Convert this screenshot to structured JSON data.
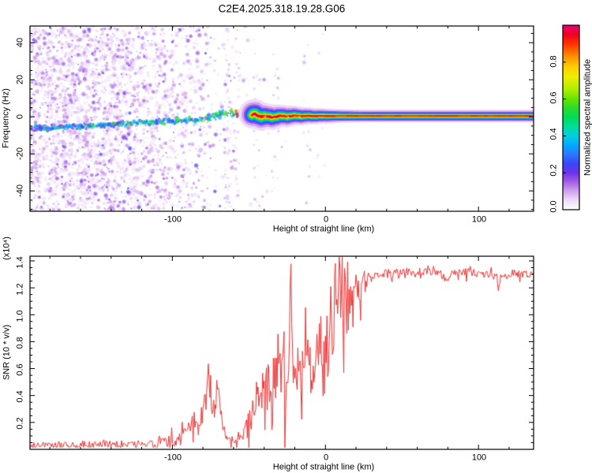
{
  "figure": {
    "title": "C2E4.2025.318.19.28.G06",
    "background": "#ffffff",
    "frame_color": "#000000"
  },
  "chart_data": [
    {
      "type": "heatmap",
      "name": "doppler-spectrogram",
      "xlabel": "Height of straight line (km)",
      "ylabel": "Frequency (Hz)",
      "xlim": [
        -193,
        136
      ],
      "ylim": [
        -51,
        49
      ],
      "xticks": {
        "values": [
          -100,
          0,
          100
        ],
        "minor_step": 20
      },
      "yticks": {
        "values": [
          40,
          20,
          0,
          -20,
          -40
        ],
        "minor_step": 5
      },
      "xtick_labels": [
        "-100",
        "0",
        "100"
      ],
      "ytick_labels": [
        "40",
        "20",
        "0",
        "-20",
        "-40"
      ],
      "colorbar": {
        "label": "Normalized spectral amplitude",
        "range": [
          0,
          1
        ],
        "tick_values": [
          0.0,
          0.2,
          0.4,
          0.6,
          0.8
        ],
        "tick_labels": [
          "0.0",
          "0.2",
          "0.4",
          "0.6",
          "0.8"
        ],
        "colormap_stops": [
          [
            0.0,
            "#ffffff"
          ],
          [
            0.05,
            "#efdcf8"
          ],
          [
            0.1,
            "#cfa4ef"
          ],
          [
            0.15,
            "#a55fe3"
          ],
          [
            0.2,
            "#6a33e8"
          ],
          [
            0.25,
            "#3a46fa"
          ],
          [
            0.3,
            "#2b79ff"
          ],
          [
            0.35,
            "#00a9ff"
          ],
          [
            0.4,
            "#00cfe0"
          ],
          [
            0.45,
            "#00dc9b"
          ],
          [
            0.5,
            "#00dc58"
          ],
          [
            0.55,
            "#2adc2a"
          ],
          [
            0.6,
            "#67e300"
          ],
          [
            0.65,
            "#abee00"
          ],
          [
            0.72,
            "#eeee00"
          ],
          [
            0.78,
            "#ffc900"
          ],
          [
            0.84,
            "#ff8400"
          ],
          [
            0.9,
            "#ff3000"
          ],
          [
            0.95,
            "#ee0022"
          ],
          [
            1.0,
            "#ee0077"
          ]
        ]
      },
      "signal_track": [
        [
          -193,
          -6.5,
          0.45,
          4.5
        ],
        [
          -185,
          -6.1,
          0.5,
          4.5
        ],
        [
          -178,
          -5.8,
          0.48,
          4.5
        ],
        [
          -170,
          -5.4,
          0.52,
          4.5
        ],
        [
          -162,
          -5.1,
          0.48,
          4.5
        ],
        [
          -155,
          -4.8,
          0.52,
          4.5
        ],
        [
          -148,
          -4.4,
          0.55,
          4.5
        ],
        [
          -140,
          -4.1,
          0.5,
          4.5
        ],
        [
          -132,
          -3.8,
          0.55,
          4.5
        ],
        [
          -125,
          -3.4,
          0.52,
          4.5
        ],
        [
          -118,
          -3.1,
          0.55,
          4.5
        ],
        [
          -110,
          -2.8,
          0.52,
          4.5
        ],
        [
          -103,
          -2.5,
          0.56,
          4.5
        ],
        [
          -96,
          -2.1,
          0.52,
          4.5
        ],
        [
          -90,
          -1.8,
          0.56,
          5.0
        ],
        [
          -84,
          -1.4,
          0.6,
          5.0
        ],
        [
          -78,
          -0.7,
          0.6,
          5.5
        ],
        [
          -72,
          0.3,
          0.62,
          6.0
        ],
        [
          -66,
          1.2,
          0.62,
          6.5
        ],
        [
          -60,
          1.9,
          0.65,
          6.0
        ],
        [
          -55,
          1.1,
          0.66,
          5.5
        ],
        [
          -50,
          0.4,
          0.7,
          5.0
        ],
        [
          -46,
          1.1,
          0.72,
          4.5
        ],
        [
          -42,
          0.3,
          0.76,
          4.0
        ],
        [
          -38,
          -0.1,
          0.8,
          3.4
        ],
        [
          -34,
          0.1,
          0.85,
          3.0
        ],
        [
          -30,
          0.3,
          0.88,
          2.8
        ],
        [
          -25,
          0.4,
          0.92,
          2.5
        ],
        [
          -20,
          0.4,
          0.95,
          2.2
        ],
        [
          -10,
          0.4,
          0.95,
          2.0
        ],
        [
          0,
          0.4,
          0.96,
          2.0
        ],
        [
          30,
          0.4,
          0.96,
          1.9
        ],
        [
          70,
          0.4,
          0.97,
          1.9
        ],
        [
          110,
          0.4,
          0.96,
          1.9
        ],
        [
          136,
          0.4,
          0.96,
          1.9
        ]
      ],
      "noise_field": {
        "amp_range": [
          0.03,
          0.22
        ],
        "density_profile": [
          [
            -193,
            1.0
          ],
          [
            -140,
            1.0
          ],
          [
            -120,
            0.85
          ],
          [
            -100,
            0.55
          ],
          [
            -85,
            0.35
          ],
          [
            -72,
            0.18
          ],
          [
            -60,
            0.09
          ],
          [
            -50,
            0.05
          ],
          [
            -40,
            0.025
          ],
          [
            -25,
            0.012
          ],
          [
            -8,
            0.008
          ],
          [
            0,
            0.0
          ]
        ],
        "sparse_columns": [
          [
            -64,
            50
          ],
          [
            -58,
            30
          ],
          [
            -45,
            18
          ],
          [
            -33,
            22
          ],
          [
            -12,
            10
          ],
          [
            -3,
            8
          ]
        ]
      },
      "stripe_layers": [
        [
          0.05,
          9.5
        ],
        [
          0.1,
          7.6
        ],
        [
          0.16,
          6.1
        ],
        [
          0.25,
          4.9
        ],
        [
          0.35,
          3.9
        ],
        [
          0.48,
          3.0
        ],
        [
          0.6,
          2.3
        ],
        [
          0.72,
          1.7
        ],
        [
          0.84,
          1.15
        ],
        [
          0.95,
          0.62
        ]
      ],
      "stripe_width_scale": [
        [
          -48,
          1.7
        ],
        [
          -35,
          1.45
        ],
        [
          -25,
          1.3
        ],
        [
          -12,
          1.1
        ],
        [
          0,
          1.0
        ],
        [
          10,
          0.9
        ],
        [
          25,
          0.85
        ],
        [
          136,
          0.85
        ]
      ]
    },
    {
      "type": "line",
      "name": "snr-profile",
      "xlabel": "Height of straight line (km)",
      "ylabel": "SNR (10 * v/v)",
      "y_scale_label": "(x10⁴)",
      "xlim": [
        -193,
        136
      ],
      "ylim": [
        0,
        1.435
      ],
      "xticks": {
        "values": [
          -100,
          0,
          100
        ],
        "minor_step": 20
      },
      "yticks": {
        "values": [
          1.4,
          1.2,
          1.0,
          0.8,
          0.6,
          0.4,
          0.2
        ],
        "minor_step": 0.05
      },
      "xtick_labels": [
        "-100",
        "0",
        "100"
      ],
      "ytick_labels": [
        "1.4",
        "1.2",
        "1.0",
        "0.8",
        "0.6",
        "0.4",
        "0.2"
      ],
      "line_color": "#e93434",
      "series": [
        {
          "name": "SNR",
          "points": [
            [
              -193,
              0.03,
              0.02
            ],
            [
              -186,
              0.035,
              0.02
            ],
            [
              -179,
              0.03,
              0.02
            ],
            [
              -172,
              0.035,
              0.025
            ],
            [
              -165,
              0.03,
              0.02
            ],
            [
              -158,
              0.04,
              0.03
            ],
            [
              -151,
              0.035,
              0.02
            ],
            [
              -144,
              0.045,
              0.03
            ],
            [
              -137,
              0.035,
              0.025
            ],
            [
              -130,
              0.04,
              0.03
            ],
            [
              -124,
              0.035,
              0.025
            ],
            [
              -118,
              0.04,
              0.03
            ],
            [
              -112,
              0.045,
              0.035
            ],
            [
              -106,
              0.05,
              0.04
            ],
            [
              -101,
              0.06,
              0.045
            ],
            [
              -97,
              0.07,
              0.05
            ],
            [
              -93,
              0.09,
              0.06
            ],
            [
              -90,
              0.12,
              0.08
            ],
            [
              -87,
              0.16,
              0.1
            ],
            [
              -84,
              0.22,
              0.12
            ],
            [
              -82,
              0.19,
              0.1
            ],
            [
              -80,
              0.26,
              0.14
            ],
            [
              -78,
              0.3,
              0.16
            ],
            [
              -76.5,
              0.64,
              0.04
            ],
            [
              -75,
              0.32,
              0.14
            ],
            [
              -73,
              0.27,
              0.12
            ],
            [
              -71,
              0.42,
              0.12
            ],
            [
              -69.5,
              0.48,
              0.06
            ],
            [
              -68,
              0.22,
              0.1
            ],
            [
              -66,
              0.14,
              0.07
            ],
            [
              -64,
              0.1,
              0.05
            ],
            [
              -61,
              0.09,
              0.04
            ],
            [
              -58,
              0.09,
              0.05
            ],
            [
              -55,
              0.11,
              0.06
            ],
            [
              -52,
              0.15,
              0.08
            ],
            [
              -50,
              0.22,
              0.12
            ],
            [
              -48,
              0.34,
              0.16
            ],
            [
              -46,
              0.28,
              0.14
            ],
            [
              -44,
              0.42,
              0.2
            ],
            [
              -42,
              0.3,
              0.18
            ],
            [
              -40,
              0.52,
              0.24
            ],
            [
              -38,
              0.36,
              0.2
            ],
            [
              -36,
              0.62,
              0.26
            ],
            [
              -34,
              0.44,
              0.24
            ],
            [
              -32,
              0.7,
              0.26
            ],
            [
              -30,
              0.5,
              0.26
            ],
            [
              -28,
              0.75,
              0.28
            ],
            [
              -26,
              0.48,
              0.26
            ],
            [
              -24,
              0.68,
              0.28
            ],
            [
              -22.5,
              1.34,
              0.06
            ],
            [
              -21,
              0.45,
              0.22
            ],
            [
              -19,
              0.72,
              0.26
            ],
            [
              -17,
              0.52,
              0.24
            ],
            [
              -15,
              0.78,
              0.26
            ],
            [
              -13,
              0.58,
              0.26
            ],
            [
              -11,
              0.72,
              0.24
            ],
            [
              -9,
              0.52,
              0.26
            ],
            [
              -7,
              0.8,
              0.28
            ],
            [
              -5,
              0.62,
              0.26
            ],
            [
              -3,
              0.76,
              0.28
            ],
            [
              -1,
              0.55,
              0.26
            ],
            [
              0.5,
              0.9,
              0.3
            ],
            [
              2,
              0.7,
              0.3
            ],
            [
              3.5,
              1.18,
              0.22
            ],
            [
              5,
              0.78,
              0.3
            ],
            [
              6.5,
              1.41,
              0.06
            ],
            [
              7.5,
              0.85,
              0.3
            ],
            [
              9,
              1.43,
              0.04
            ],
            [
              10,
              0.95,
              0.3
            ],
            [
              11,
              1.4,
              0.08
            ],
            [
              12,
              0.72,
              0.28
            ],
            [
              13,
              1.12,
              0.24
            ],
            [
              14.5,
              0.98,
              0.2
            ],
            [
              16,
              1.12,
              0.16
            ],
            [
              18,
              1.05,
              0.16
            ],
            [
              20,
              1.18,
              0.12
            ],
            [
              22,
              1.12,
              0.12
            ],
            [
              24,
              1.22,
              0.1
            ],
            [
              26,
              1.17,
              0.1
            ],
            [
              28,
              1.25,
              0.07
            ],
            [
              30,
              1.28,
              0.05
            ],
            [
              34,
              1.3,
              0.035
            ],
            [
              40,
              1.31,
              0.03
            ],
            [
              46,
              1.315,
              0.03
            ],
            [
              52,
              1.32,
              0.03
            ],
            [
              58,
              1.31,
              0.035
            ],
            [
              64,
              1.32,
              0.03
            ],
            [
              70,
              1.315,
              0.03
            ],
            [
              76,
              1.3,
              0.03
            ],
            [
              79,
              1.25,
              0.02
            ],
            [
              82,
              1.31,
              0.03
            ],
            [
              88,
              1.32,
              0.03
            ],
            [
              94,
              1.315,
              0.03
            ],
            [
              100,
              1.31,
              0.03
            ],
            [
              106,
              1.3,
              0.03
            ],
            [
              110,
              1.3,
              0.025
            ],
            [
              112,
              1.27,
              0.02
            ],
            [
              113,
              1.17,
              0.015
            ],
            [
              114.5,
              1.28,
              0.02
            ],
            [
              118,
              1.3,
              0.025
            ],
            [
              124,
              1.31,
              0.03
            ],
            [
              130,
              1.3,
              0.03
            ],
            [
              136,
              1.3,
              0.025
            ]
          ]
        }
      ]
    }
  ]
}
